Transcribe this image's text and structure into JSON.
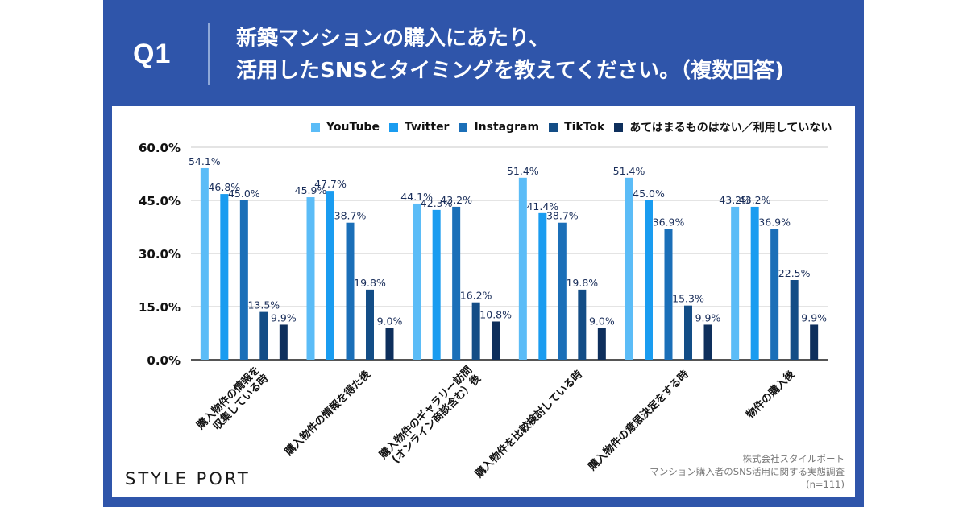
{
  "header": {
    "question_label": "Q1",
    "title_line1": "新築マンションの購入にあたり、",
    "title_line2": "活用したSNSとタイミングを教えてください。（複数回答)"
  },
  "brand": "STYLE PORT",
  "source": {
    "line1": "株式会社スタイルポート",
    "line2": "マンション購入者のSNS活用に関する実態調査",
    "line3": "(n=111)"
  },
  "chart_data": {
    "type": "bar",
    "title": "新築マンションの購入にあたり、活用したSNSとタイミングを教えてください。（複数回答)",
    "xlabel": "",
    "ylabel": "",
    "ylim": [
      0,
      60
    ],
    "yticks": [
      0,
      15,
      30,
      45,
      60
    ],
    "ytick_labels": [
      "0.0%",
      "15.0%",
      "30.0%",
      "45.0%",
      "60.0%"
    ],
    "grid": true,
    "legend_position": "top-right",
    "categories": [
      [
        "購入物件の情報を",
        "収集している時"
      ],
      [
        "購入物件の情報を得た後"
      ],
      [
        "購入物件のギャラリー訪問",
        "(オンライン商談含む）後"
      ],
      [
        "購入物件を比較検討している時"
      ],
      [
        "購入物件の意思決定をする時"
      ],
      [
        "物件の購入後"
      ]
    ],
    "series": [
      {
        "name": "YouTube",
        "color": "#5bbcf7",
        "values": [
          54.1,
          45.9,
          44.1,
          51.4,
          51.4,
          43.2
        ],
        "labels": [
          "54.1%",
          "45.9%",
          "44.1%",
          "51.4%",
          "51.4%",
          "43.2%"
        ]
      },
      {
        "name": "Twitter",
        "color": "#1a9cf0",
        "values": [
          46.8,
          47.7,
          42.3,
          41.4,
          45.0,
          43.2
        ],
        "labels": [
          "46.8%",
          "47.7%",
          "42.3%",
          "41.4%",
          "45.0%",
          "43.2%"
        ]
      },
      {
        "name": "Instagram",
        "color": "#1b6fb8",
        "values": [
          45.0,
          38.7,
          43.2,
          38.7,
          36.9,
          36.9
        ],
        "labels": [
          "45.0%",
          "38.7%",
          "43.2%",
          "38.7%",
          "36.9%",
          "36.9%"
        ]
      },
      {
        "name": "TikTok",
        "color": "#134d86",
        "values": [
          13.5,
          19.8,
          16.2,
          19.8,
          15.3,
          22.5
        ],
        "labels": [
          "13.5%",
          "19.8%",
          "16.2%",
          "19.8%",
          "15.3%",
          "22.5%"
        ]
      },
      {
        "name": "あてはまるものはない／利用していない",
        "color": "#0e2f5c",
        "values": [
          9.9,
          9.0,
          10.8,
          9.0,
          9.9,
          9.9
        ],
        "labels": [
          "9.9%",
          "9.0%",
          "10.8%",
          "9.0%",
          "9.9%",
          "9.9%"
        ]
      }
    ]
  },
  "colors": {
    "frame_blue": "#2f55aa",
    "label_text": "#1a2e5a"
  }
}
